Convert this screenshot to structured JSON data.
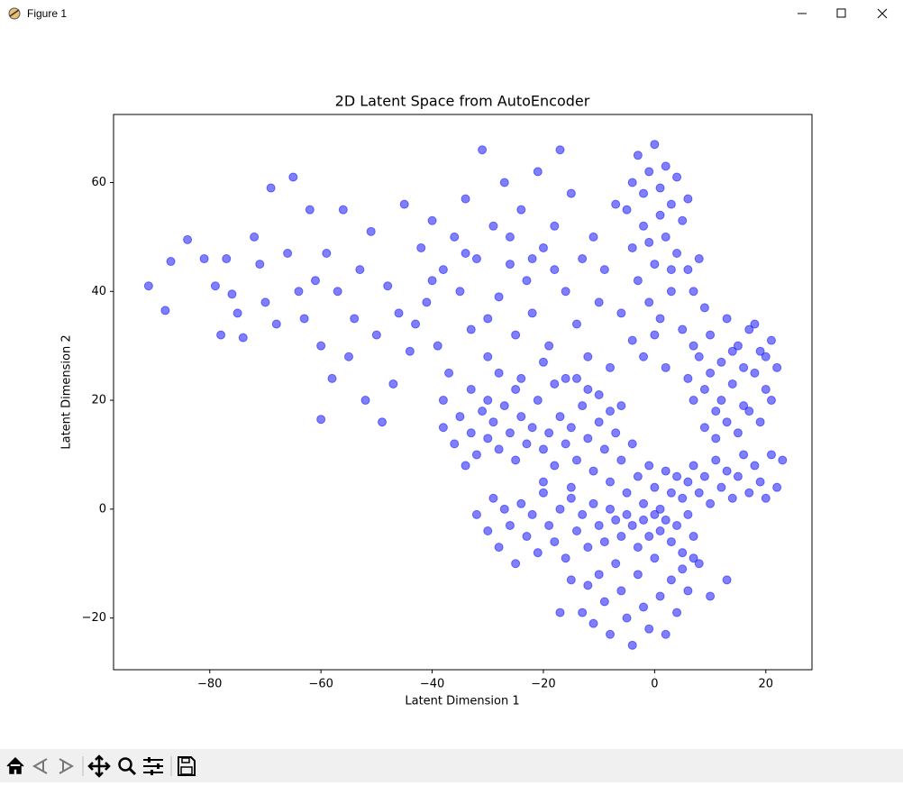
{
  "window": {
    "title": "Figure 1"
  },
  "chart_data": {
    "type": "scatter",
    "title": "2D Latent Space from AutoEncoder",
    "x_label": "Latent Dimension 1",
    "y_label": "Latent Dimension 2",
    "color": "#0000ff",
    "alpha": 0.5,
    "xlim": [
      -97.3,
      28.3
    ],
    "ylim": [
      -29.5,
      72.5
    ],
    "xticks": [
      {
        "value": -80,
        "label": "−80"
      },
      {
        "value": -60,
        "label": "−60"
      },
      {
        "value": -40,
        "label": "−40"
      },
      {
        "value": -20,
        "label": "−20"
      },
      0,
      20
    ],
    "yticks": [
      {
        "value": -20,
        "label": "−20"
      },
      0,
      20,
      40,
      60
    ],
    "x": [
      -91,
      -88,
      -87,
      -84,
      -81,
      -79,
      -78,
      -77,
      -76,
      -75,
      -74,
      -72,
      -71,
      -70,
      -69,
      -68,
      -66,
      -65,
      -64,
      -63,
      -62,
      -61,
      -60,
      -59,
      -58,
      -57,
      -56,
      -55,
      -54,
      -53,
      -52,
      -51,
      -50,
      -49,
      -48,
      -47,
      -46,
      -45,
      -44,
      -60,
      -42,
      -41,
      -40,
      -39,
      -38,
      -37,
      -36,
      -35,
      -34,
      -33,
      -32,
      -31,
      -30,
      -29,
      -28,
      -27,
      -26,
      -25,
      -24,
      -23,
      -22,
      -21,
      -20,
      -19,
      -18,
      -17,
      -16,
      -15,
      -14,
      -13,
      -12,
      -11,
      -10,
      -9,
      -8,
      -7,
      -43,
      -38,
      -33,
      -28,
      -24,
      -20,
      -16,
      -12,
      -30,
      -26,
      -22,
      -18,
      -34,
      -40,
      -38,
      -36,
      -35,
      -33,
      -32,
      -31,
      -30,
      -29,
      -28,
      -27,
      -26,
      -25,
      -24,
      -23,
      -22,
      -21,
      -20,
      -19,
      -18,
      -17,
      -16,
      -15,
      -14,
      -13,
      -12,
      -11,
      -10,
      -9,
      -8,
      -7,
      -6,
      -5,
      -4,
      -3,
      -2,
      -1,
      0,
      1,
      2,
      3,
      4,
      5,
      6,
      7,
      8,
      9,
      10,
      11,
      12,
      13,
      14,
      15,
      16,
      17,
      18,
      19,
      20,
      21,
      22,
      23,
      -25,
      -18,
      -14,
      -10,
      -6,
      -30,
      -34,
      -20,
      -15,
      -8,
      -32,
      -30,
      -29,
      -28,
      -27,
      -26,
      -25,
      -24,
      -23,
      -22,
      -21,
      -20,
      -19,
      -18,
      -17,
      -16,
      -15,
      -14,
      -13,
      -12,
      -11,
      -10,
      -9,
      -8,
      -7,
      -6,
      -5,
      -4,
      -3,
      -2,
      -1,
      0,
      1,
      2,
      3,
      4,
      5,
      6,
      7,
      8,
      -13,
      -12,
      -11,
      -10,
      -9,
      -8,
      -7,
      -6,
      -5,
      -4,
      -3,
      -2,
      -1,
      0,
      1,
      2,
      3,
      4,
      5,
      6,
      7,
      10,
      13,
      -17,
      -15,
      -5,
      -4,
      -3,
      -2,
      -1,
      0,
      1,
      2,
      3,
      4,
      5,
      6,
      -4,
      -2,
      0,
      2,
      4,
      6,
      7,
      -3,
      -1,
      1,
      3,
      5,
      7,
      -6,
      -4,
      -2,
      0,
      2,
      8,
      9,
      -1,
      1,
      3,
      8,
      9,
      10,
      11,
      12,
      13,
      14,
      15,
      16,
      17,
      18,
      19,
      20,
      21,
      22,
      10,
      12,
      14,
      16,
      18,
      20,
      7,
      9,
      11,
      13,
      15,
      17,
      19,
      21,
      6
    ],
    "values": [
      41,
      36.5,
      45.5,
      49.5,
      46,
      41,
      32,
      46,
      39.5,
      36,
      31.5,
      50,
      45,
      38,
      59,
      34,
      47,
      61,
      40,
      35,
      55,
      42,
      30,
      47,
      24,
      40,
      55,
      28,
      35,
      44,
      20,
      51,
      32,
      16,
      41,
      23,
      36,
      56,
      29,
      16.5,
      48,
      38,
      53,
      30,
      44,
      25,
      50,
      40,
      57,
      33,
      46,
      66,
      28,
      52,
      39,
      60,
      45,
      32,
      55,
      42,
      36,
      62,
      48,
      30,
      52,
      66,
      40,
      58,
      34,
      46,
      28,
      50,
      38,
      44,
      26,
      56,
      34,
      20,
      22,
      25,
      24,
      27,
      24,
      22,
      35,
      50,
      46,
      44,
      47,
      42,
      15,
      12,
      17,
      14,
      10,
      18,
      13,
      16,
      11,
      19,
      14,
      9,
      17,
      12,
      15,
      20,
      11,
      14,
      8,
      17,
      12,
      15,
      9,
      19,
      13,
      7,
      16,
      11,
      5,
      14,
      9,
      3,
      12,
      6,
      1,
      8,
      4,
      0,
      7,
      3,
      6,
      2,
      5,
      8,
      3,
      6,
      1,
      9,
      4,
      7,
      2,
      6,
      10,
      3,
      8,
      5,
      2,
      10,
      4,
      9,
      22,
      23,
      24,
      21,
      19,
      20,
      8,
      5,
      4,
      18,
      -1,
      -4,
      2,
      -7,
      0,
      -3,
      -10,
      1,
      -5,
      -1,
      -8,
      3,
      -3,
      -6,
      0,
      -9,
      2,
      -4,
      -1,
      -7,
      1,
      -3,
      -6,
      0,
      -2,
      -5,
      -1,
      -3,
      -7,
      -2,
      -5,
      -1,
      -4,
      -2,
      -6,
      -3,
      -8,
      -1,
      -5,
      -10,
      -19,
      -14,
      -21,
      -12,
      -17,
      -23,
      -10,
      -15,
      -20,
      -25,
      -12,
      -18,
      -22,
      -9,
      -16,
      -23,
      -13,
      -19,
      -11,
      -15,
      -9,
      -16,
      -13,
      -19,
      -13,
      55,
      60,
      65,
      58,
      62,
      67,
      59,
      63,
      56,
      61,
      53,
      57,
      48,
      52,
      45,
      50,
      47,
      44,
      40,
      42,
      38,
      35,
      40,
      33,
      30,
      36,
      31,
      28,
      32,
      26,
      46,
      37,
      49,
      54,
      44,
      28,
      22,
      32,
      18,
      27,
      35,
      23,
      30,
      19,
      33,
      25,
      29,
      22,
      31,
      26,
      25,
      20,
      29,
      26,
      34,
      28,
      20,
      15,
      13,
      16,
      14,
      18,
      16,
      20,
      24
    ]
  }
}
